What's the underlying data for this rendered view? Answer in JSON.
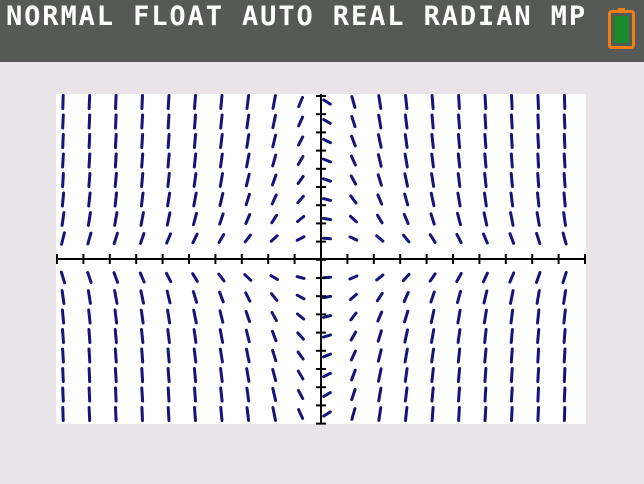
{
  "status_bar": {
    "mode_text": "NORMAL FLOAT AUTO REAL RADIAN MP",
    "battery_icon": "battery-icon"
  },
  "colors": {
    "status_bar_bg": "#565956",
    "screen_bg": "#e8e4e8",
    "plot_bg": "#ffffff",
    "field_color": "#14147a",
    "axis_color": "#000000",
    "battery_outline": "#f07f14",
    "battery_fill": "#1a8a2a"
  },
  "graph": {
    "type": "slope-field",
    "grid": false
  }
}
